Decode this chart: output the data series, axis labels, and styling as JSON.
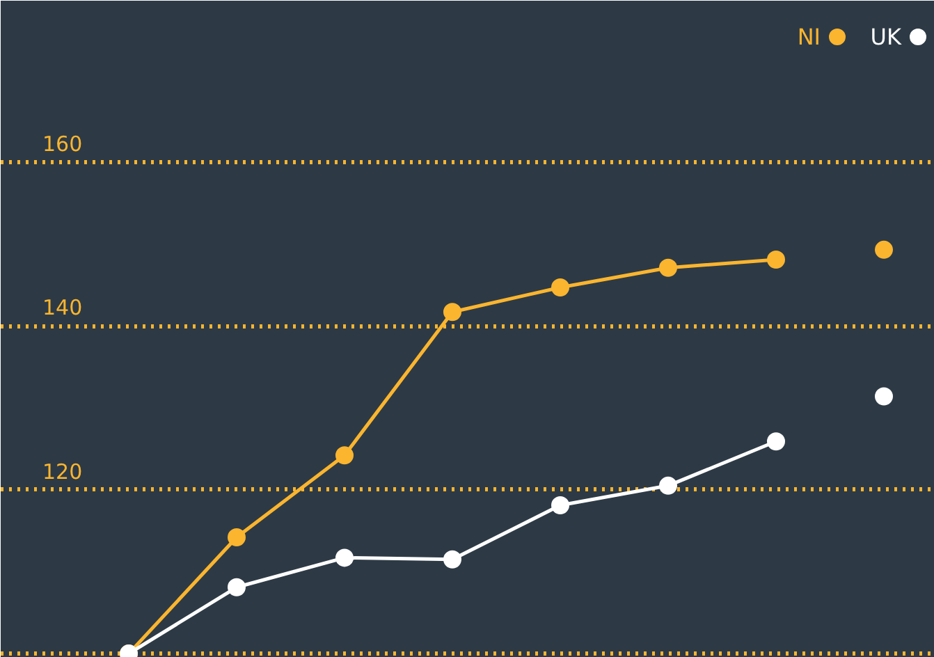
{
  "chart_data": {
    "type": "line",
    "categories": [
      null,
      null,
      null,
      null,
      null,
      null,
      null,
      null
    ],
    "series": [
      {
        "name": "NI",
        "color": "#fbb52e",
        "values": [
          100,
          114.2,
          124.2,
          141.7,
          144.7,
          147.1,
          148.1,
          null
        ]
      },
      {
        "name": "UK",
        "color": "#ffffff",
        "values": [
          100,
          108.1,
          111.7,
          111.5,
          118.1,
          120.5,
          125.9,
          null
        ]
      },
      {
        "type": "scatter",
        "color": "#fbb52e",
        "values": [
          null,
          null,
          null,
          null,
          null,
          null,
          null,
          149.3
        ]
      },
      {
        "type": "scatter",
        "color": "#ffffff",
        "values": [
          null,
          null,
          null,
          null,
          null,
          null,
          null,
          131.4
        ]
      }
    ],
    "ylim": [
      99.5,
      179.7
    ],
    "yticks": [
      {
        "value": 100,
        "label": null
      },
      120,
      140,
      160
    ],
    "grid": "y",
    "legend": "top right",
    "marker": "circle",
    "line_style": "solid"
  }
}
